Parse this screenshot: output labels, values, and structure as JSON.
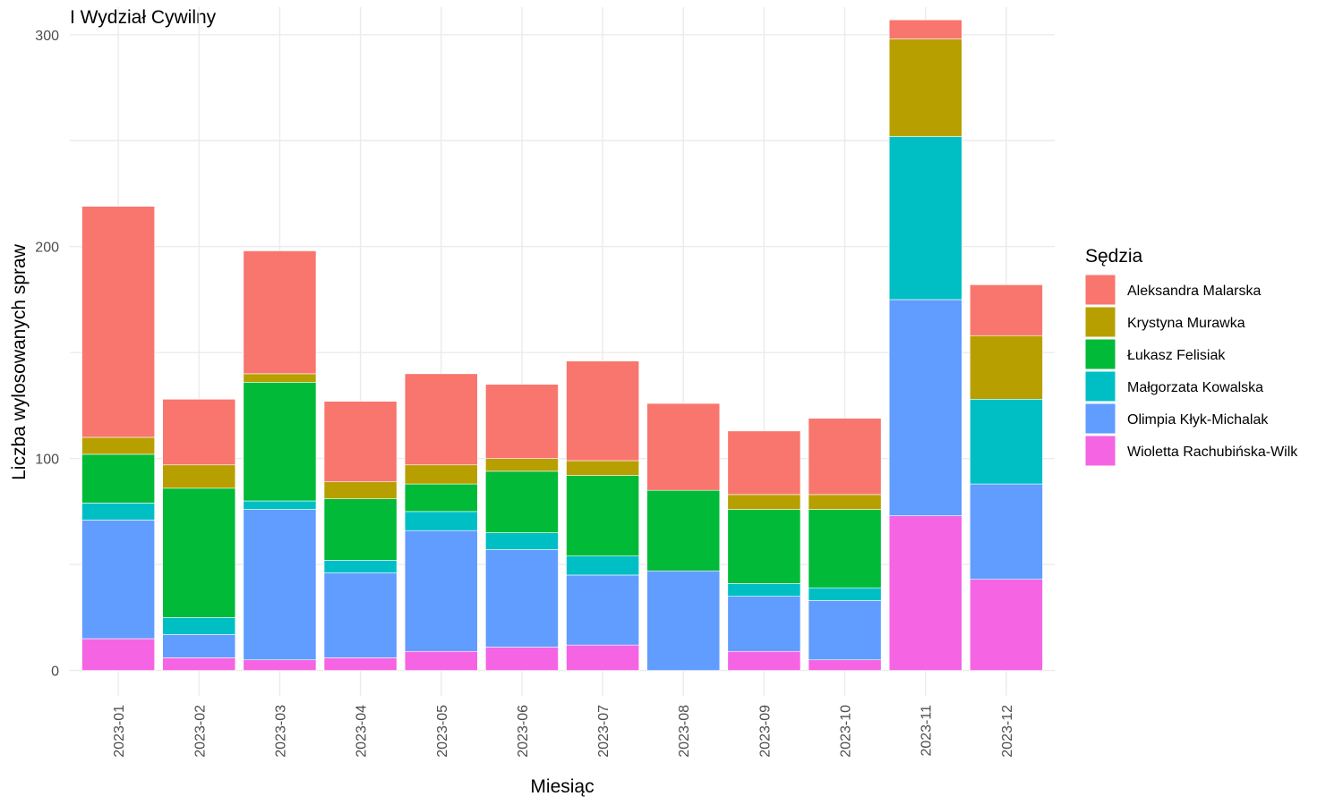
{
  "chart_data": {
    "type": "bar",
    "stacked": true,
    "title": "I Wydział Cywilny",
    "xlabel": "Miesiąc",
    "ylabel": "Liczba wylosowanych spraw",
    "ylim": [
      -12,
      313
    ],
    "yticks": [
      0,
      100,
      200,
      300
    ],
    "grid": true,
    "legend_position": "right",
    "legend_title": "Sędzia",
    "categories": [
      "2023-01",
      "2023-02",
      "2023-03",
      "2023-04",
      "2023-05",
      "2023-06",
      "2023-07",
      "2023-08",
      "2023-09",
      "2023-10",
      "2023-11",
      "2023-12"
    ],
    "series": [
      {
        "name": "Wioletta Rachubińska-Wilk",
        "color": "#F564E3",
        "values": [
          15,
          6,
          5,
          6,
          9,
          11,
          12,
          0,
          9,
          5,
          73,
          43
        ]
      },
      {
        "name": "Olimpia Kłyk-Michalak",
        "color": "#619CFF",
        "values": [
          56,
          11,
          71,
          40,
          57,
          46,
          33,
          47,
          26,
          28,
          102,
          45
        ]
      },
      {
        "name": "Małgorzata Kowalska",
        "color": "#00BFC4",
        "values": [
          8,
          8,
          4,
          6,
          9,
          8,
          9,
          0,
          6,
          6,
          77,
          40
        ]
      },
      {
        "name": "Łukasz Felisiak",
        "color": "#00BA38",
        "values": [
          23,
          61,
          56,
          29,
          13,
          29,
          38,
          38,
          35,
          37,
          0,
          0
        ]
      },
      {
        "name": "Krystyna Murawka",
        "color": "#B79F00",
        "values": [
          8,
          11,
          4,
          8,
          9,
          6,
          7,
          0,
          7,
          7,
          46,
          30
        ]
      },
      {
        "name": "Aleksandra Malarska",
        "color": "#F8766D",
        "values": [
          109,
          31,
          58,
          38,
          43,
          35,
          47,
          41,
          30,
          36,
          9,
          24
        ]
      }
    ]
  }
}
